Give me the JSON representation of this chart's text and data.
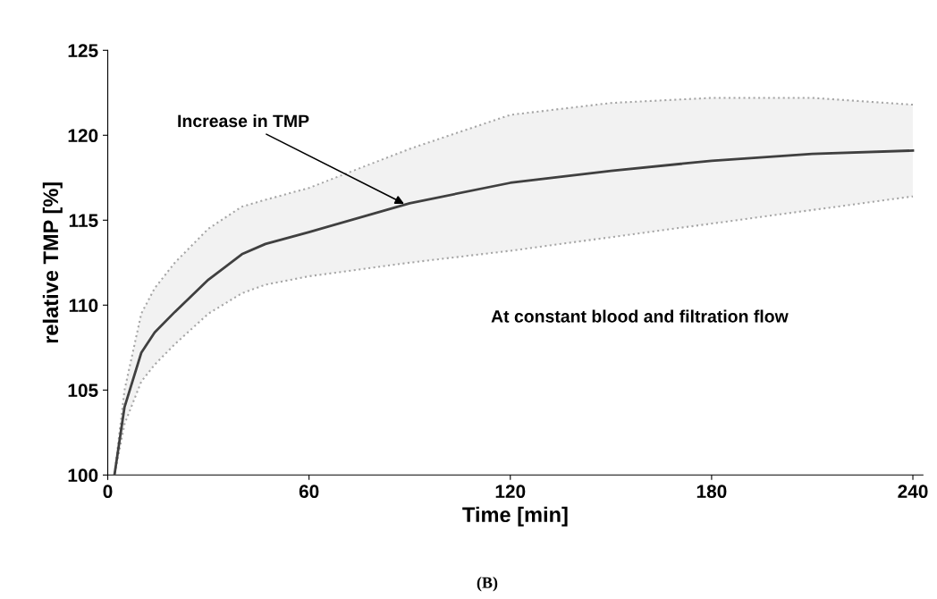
{
  "chart_data": {
    "type": "line",
    "xlabel": "Time [min]",
    "ylabel": "relative TMP [%]",
    "x": [
      2,
      5,
      10,
      14,
      20,
      30,
      40,
      47,
      60,
      90,
      120,
      150,
      180,
      210,
      240
    ],
    "series": [
      {
        "color": "#404040",
        "values": [
          100,
          104,
          107.2,
          108.4,
          109.6,
          111.5,
          113,
          113.6,
          114.3,
          116,
          117.2,
          117.9,
          118.5,
          118.9,
          119.1
        ],
        "upper": [
          100,
          105,
          109.5,
          111,
          112.5,
          114.5,
          115.8,
          116.2,
          116.9,
          119.2,
          121.2,
          121.9,
          122.2,
          122.2,
          121.8
        ],
        "lower": [
          100,
          103,
          105.5,
          106.5,
          107.7,
          109.5,
          110.7,
          111.2,
          111.7,
          112.5,
          113.2,
          114,
          114.8,
          115.6,
          116.4
        ]
      }
    ],
    "xlim": [
      0,
      243
    ],
    "xticks": [
      0,
      60,
      120,
      180,
      240
    ],
    "ylim": [
      100,
      125
    ],
    "yticks": [
      100,
      105,
      110,
      115,
      120,
      125
    ],
    "grid": false,
    "legend": false,
    "marker": "none",
    "line_style": "solid",
    "annotations": [
      {
        "text": "Increase in TMP",
        "x": 89,
        "y": 115.9
      },
      "At constant blood and filtration flow",
      "(B)"
    ]
  }
}
